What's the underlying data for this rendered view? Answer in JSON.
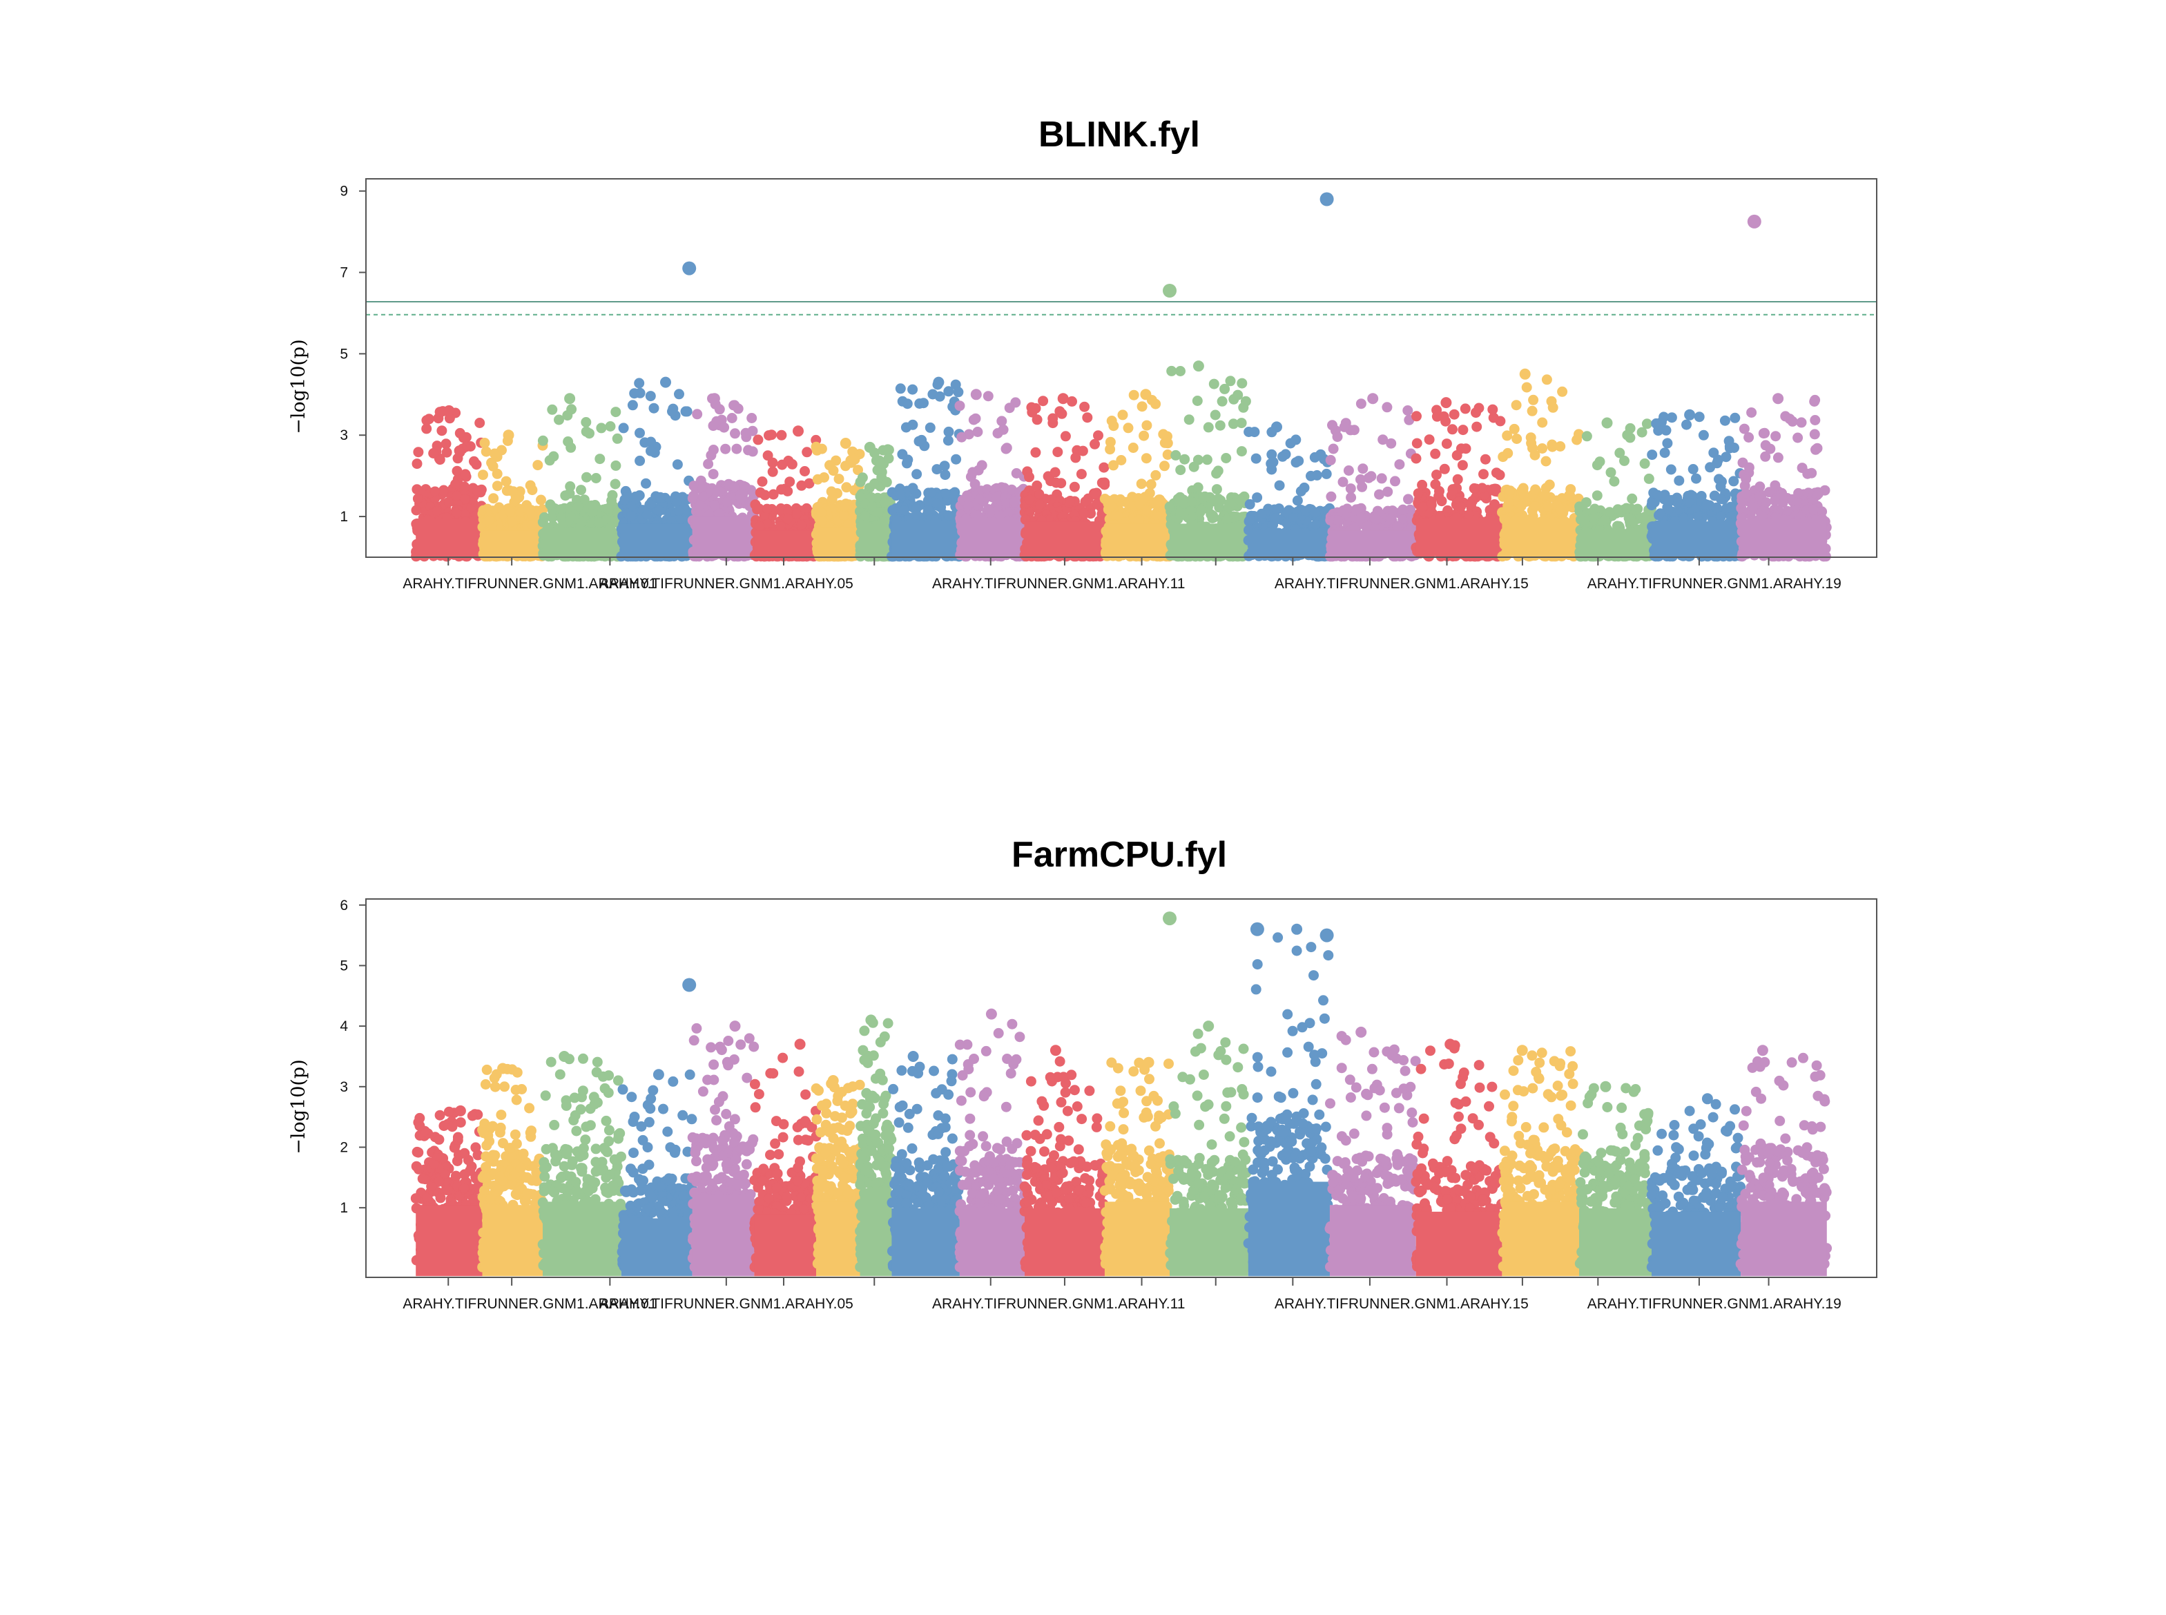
{
  "chart_data": [
    {
      "type": "scatter",
      "title": "BLINK.fyl",
      "ylabel": "−log10(p)",
      "yticks": [
        1,
        3,
        5,
        7,
        9
      ],
      "ylim": [
        0,
        9.3
      ],
      "xlim": [
        0,
        1
      ],
      "xtick_labels": [
        "ARAHY.TIFRUNNER.GNM1.ARAHY.01",
        "ARAHY.TIFRUNNER.GNM1.ARAHY.05",
        "ARAHY.TIFRUNNER.GNM1.ARAHY.11",
        "ARAHY.TIFRUNNER.GNM1.ARAHY.15",
        "ARAHY.TIFRUNNER.GNM1.ARAHY.19"
      ],
      "xtick_label_x": [
        0.1085,
        0.2385,
        0.4585,
        0.6855,
        0.8925
      ],
      "xtick_marks_x": [
        0.0545,
        0.0965,
        0.1615,
        0.2385,
        0.2765,
        0.3365,
        0.4135,
        0.4625,
        0.5135,
        0.5625,
        0.6135,
        0.6645,
        0.7155,
        0.7655,
        0.8155,
        0.8825,
        0.9285
      ],
      "threshold_solid": 6.28,
      "threshold_dashed": 5.96,
      "chromosomes": [
        {
          "start": 0.033,
          "end": 0.077,
          "color": "#e8636b",
          "base": 1.7,
          "top": 3.6
        },
        {
          "start": 0.077,
          "end": 0.117,
          "color": "#f6c667",
          "base": 1.2,
          "top": 3.0
        },
        {
          "start": 0.117,
          "end": 0.169,
          "color": "#99c794",
          "base": 1.3,
          "top": 3.9
        },
        {
          "start": 0.169,
          "end": 0.216,
          "color": "#6598c8",
          "base": 1.5,
          "top": 4.3
        },
        {
          "start": 0.216,
          "end": 0.257,
          "color": "#c48fc3",
          "base": 1.8,
          "top": 3.9
        },
        {
          "start": 0.257,
          "end": 0.298,
          "color": "#e8636b",
          "base": 1.2,
          "top": 3.1
        },
        {
          "start": 0.298,
          "end": 0.327,
          "color": "#f6c667",
          "base": 1.3,
          "top": 2.8
        },
        {
          "start": 0.327,
          "end": 0.348,
          "color": "#99c794",
          "base": 1.5,
          "top": 2.7
        },
        {
          "start": 0.348,
          "end": 0.393,
          "color": "#6598c8",
          "base": 1.6,
          "top": 4.3
        },
        {
          "start": 0.393,
          "end": 0.436,
          "color": "#c48fc3",
          "base": 1.7,
          "top": 4.0
        },
        {
          "start": 0.436,
          "end": 0.489,
          "color": "#e8636b",
          "base": 1.6,
          "top": 3.9
        },
        {
          "start": 0.489,
          "end": 0.532,
          "color": "#f6c667",
          "base": 1.5,
          "top": 4.0
        },
        {
          "start": 0.532,
          "end": 0.584,
          "color": "#99c794",
          "base": 1.5,
          "top": 4.7
        },
        {
          "start": 0.584,
          "end": 0.638,
          "color": "#6598c8",
          "base": 1.2,
          "top": 3.2
        },
        {
          "start": 0.638,
          "end": 0.695,
          "color": "#c48fc3",
          "base": 1.2,
          "top": 3.9
        },
        {
          "start": 0.695,
          "end": 0.752,
          "color": "#e8636b",
          "base": 1.7,
          "top": 3.8
        },
        {
          "start": 0.752,
          "end": 0.803,
          "color": "#f6c667",
          "base": 1.7,
          "top": 4.5
        },
        {
          "start": 0.803,
          "end": 0.851,
          "color": "#99c794",
          "base": 1.2,
          "top": 3.3
        },
        {
          "start": 0.851,
          "end": 0.91,
          "color": "#6598c8",
          "base": 1.6,
          "top": 3.5
        },
        {
          "start": 0.91,
          "end": 0.967,
          "color": "#c48fc3",
          "base": 1.7,
          "top": 3.9
        }
      ],
      "significant_points": [
        {
          "x": 0.214,
          "y": 7.1,
          "color": "#6598c8"
        },
        {
          "x": 0.532,
          "y": 6.55,
          "color": "#99c794"
        },
        {
          "x": 0.636,
          "y": 8.8,
          "color": "#6598c8"
        },
        {
          "x": 0.919,
          "y": 8.25,
          "color": "#c48fc3"
        }
      ]
    },
    {
      "type": "scatter",
      "title": "FarmCPU.fyl",
      "ylabel": "−log10(p)",
      "yticks": [
        1,
        2,
        3,
        4,
        5,
        6
      ],
      "ylim": [
        -0.15,
        6.1
      ],
      "xlim": [
        0,
        1
      ],
      "xtick_labels": [
        "ARAHY.TIFRUNNER.GNM1.ARAHY.01",
        "ARAHY.TIFRUNNER.GNM1.ARAHY.05",
        "ARAHY.TIFRUNNER.GNM1.ARAHY.11",
        "ARAHY.TIFRUNNER.GNM1.ARAHY.15",
        "ARAHY.TIFRUNNER.GNM1.ARAHY.19"
      ],
      "xtick_label_x": [
        0.1085,
        0.2385,
        0.4585,
        0.6855,
        0.8925
      ],
      "xtick_marks_x": [
        0.0545,
        0.0965,
        0.1615,
        0.2385,
        0.2765,
        0.3365,
        0.4135,
        0.4625,
        0.5135,
        0.5625,
        0.6135,
        0.6645,
        0.7155,
        0.7655,
        0.8155,
        0.8825,
        0.9285
      ],
      "chromosomes": [
        {
          "start": 0.033,
          "end": 0.077,
          "color": "#e8636b",
          "base": 1.9,
          "top": 2.6
        },
        {
          "start": 0.077,
          "end": 0.117,
          "color": "#f6c667",
          "base": 1.9,
          "top": 3.3
        },
        {
          "start": 0.117,
          "end": 0.169,
          "color": "#99c794",
          "base": 2.0,
          "top": 3.5
        },
        {
          "start": 0.169,
          "end": 0.216,
          "color": "#6598c8",
          "base": 1.5,
          "top": 3.2
        },
        {
          "start": 0.216,
          "end": 0.257,
          "color": "#c48fc3",
          "base": 2.2,
          "top": 4.0
        },
        {
          "start": 0.257,
          "end": 0.298,
          "color": "#e8636b",
          "base": 1.6,
          "top": 3.7
        },
        {
          "start": 0.298,
          "end": 0.327,
          "color": "#f6c667",
          "base": 2.0,
          "top": 3.1
        },
        {
          "start": 0.327,
          "end": 0.348,
          "color": "#99c794",
          "base": 2.4,
          "top": 4.1
        },
        {
          "start": 0.348,
          "end": 0.393,
          "color": "#6598c8",
          "base": 1.8,
          "top": 3.5
        },
        {
          "start": 0.393,
          "end": 0.436,
          "color": "#c48fc3",
          "base": 1.8,
          "top": 4.2
        },
        {
          "start": 0.436,
          "end": 0.489,
          "color": "#e8636b",
          "base": 1.8,
          "top": 3.6
        },
        {
          "start": 0.489,
          "end": 0.532,
          "color": "#f6c667",
          "base": 2.0,
          "top": 3.4
        },
        {
          "start": 0.532,
          "end": 0.584,
          "color": "#99c794",
          "base": 1.8,
          "top": 4.0
        },
        {
          "start": 0.584,
          "end": 0.638,
          "color": "#6598c8",
          "base": 2.6,
          "top": 5.6
        },
        {
          "start": 0.638,
          "end": 0.695,
          "color": "#c48fc3",
          "base": 1.9,
          "top": 3.9
        },
        {
          "start": 0.695,
          "end": 0.752,
          "color": "#e8636b",
          "base": 1.7,
          "top": 3.7
        },
        {
          "start": 0.752,
          "end": 0.803,
          "color": "#f6c667",
          "base": 2.0,
          "top": 3.6
        },
        {
          "start": 0.803,
          "end": 0.851,
          "color": "#99c794",
          "base": 1.8,
          "top": 3.0
        },
        {
          "start": 0.851,
          "end": 0.91,
          "color": "#6598c8",
          "base": 1.7,
          "top": 2.8
        },
        {
          "start": 0.91,
          "end": 0.967,
          "color": "#c48fc3",
          "base": 2.0,
          "top": 3.6
        }
      ],
      "significant_points": [
        {
          "x": 0.214,
          "y": 4.68,
          "color": "#6598c8"
        },
        {
          "x": 0.532,
          "y": 5.78,
          "color": "#99c794"
        },
        {
          "x": 0.59,
          "y": 5.6,
          "color": "#6598c8"
        },
        {
          "x": 0.636,
          "y": 5.5,
          "color": "#6598c8"
        }
      ]
    }
  ]
}
